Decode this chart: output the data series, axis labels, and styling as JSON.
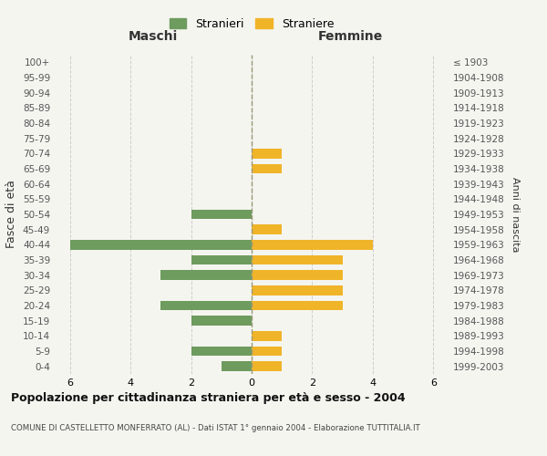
{
  "age_groups": [
    "0-4",
    "5-9",
    "10-14",
    "15-19",
    "20-24",
    "25-29",
    "30-34",
    "35-39",
    "40-44",
    "45-49",
    "50-54",
    "55-59",
    "60-64",
    "65-69",
    "70-74",
    "75-79",
    "80-84",
    "85-89",
    "90-94",
    "95-99",
    "100+"
  ],
  "birth_years": [
    "1999-2003",
    "1994-1998",
    "1989-1993",
    "1984-1988",
    "1979-1983",
    "1974-1978",
    "1969-1973",
    "1964-1968",
    "1959-1963",
    "1954-1958",
    "1949-1953",
    "1944-1948",
    "1939-1943",
    "1934-1938",
    "1929-1933",
    "1924-1928",
    "1919-1923",
    "1914-1918",
    "1909-1913",
    "1904-1908",
    "≤ 1903"
  ],
  "males": [
    1,
    2,
    0,
    2,
    3,
    0,
    3,
    2,
    6,
    0,
    2,
    0,
    0,
    0,
    0,
    0,
    0,
    0,
    0,
    0,
    0
  ],
  "females": [
    1,
    1,
    1,
    0,
    3,
    3,
    3,
    3,
    4,
    1,
    0,
    0,
    0,
    1,
    1,
    0,
    0,
    0,
    0,
    0,
    0
  ],
  "male_color": "#6e9b5e",
  "female_color": "#f0b429",
  "background_color": "#f5f5f0",
  "grid_color": "#cccccc",
  "male_label": "Stranieri",
  "female_label": "Straniere",
  "left_title": "Maschi",
  "right_title": "Femmine",
  "ylabel_left": "Fasce di età",
  "ylabel_right": "Anni di nascita",
  "xlim": 6.5,
  "title": "Popolazione per cittadinanza straniera per età e sesso - 2004",
  "subtitle": "COMUNE DI CASTELLETTO MONFERRATO (AL) - Dati ISTAT 1° gennaio 2004 - Elaborazione TUTTITALIA.IT"
}
